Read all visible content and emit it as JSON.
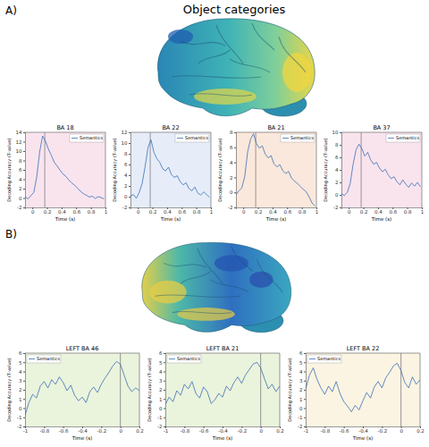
{
  "figure": {
    "title": "Object categories",
    "panels": [
      "A)",
      "B)"
    ]
  },
  "chart_data": [
    {
      "type": "line",
      "title": "BA 18",
      "xlabel": "Time (s)",
      "ylabel": "Decoding Accuracy (T-value)",
      "x": [
        -0.1,
        -0.06,
        -0.02,
        0.02,
        0.06,
        0.1,
        0.14,
        0.18,
        0.22,
        0.26,
        0.3,
        0.34,
        0.38,
        0.42,
        0.46,
        0.5,
        0.54,
        0.58,
        0.62,
        0.66,
        0.7,
        0.74,
        0.78,
        0.82,
        0.86,
        0.9,
        0.94,
        0.98
      ],
      "series": [
        {
          "name": "Semantics",
          "color": "#3b6fb6",
          "values": [
            0.3,
            -0.2,
            0.5,
            1.2,
            4.5,
            9.8,
            13.2,
            12.1,
            10.4,
            9.1,
            7.6,
            6.8,
            5.9,
            5.1,
            4.6,
            3.8,
            3.2,
            2.7,
            2.1,
            1.4,
            0.9,
            0.6,
            0.2,
            0.4,
            -0.1,
            0.3,
            0.1,
            -0.2
          ]
        }
      ],
      "xlim": [
        -0.1,
        1
      ],
      "xticks": [
        0,
        0.2,
        0.4,
        0.6,
        0.8,
        1
      ],
      "ylim": [
        -2,
        14
      ],
      "yticks": [
        -2,
        0,
        2,
        4,
        6,
        8,
        10,
        12,
        14
      ],
      "vline": 0.17,
      "legend": "upper right",
      "grid": false
    },
    {
      "type": "line",
      "title": "BA 22",
      "xlabel": "Time (s)",
      "ylabel": "Decoding Accuracy (T-value)",
      "x": [
        -0.1,
        -0.06,
        -0.02,
        0.02,
        0.06,
        0.1,
        0.14,
        0.18,
        0.22,
        0.26,
        0.3,
        0.34,
        0.38,
        0.42,
        0.46,
        0.5,
        0.54,
        0.58,
        0.62,
        0.66,
        0.7,
        0.74,
        0.78,
        0.82,
        0.86,
        0.9,
        0.94,
        0.98
      ],
      "series": [
        {
          "name": "Semantics",
          "color": "#3b6fb6",
          "values": [
            0.1,
            0.4,
            -0.3,
            0.8,
            2.5,
            5.6,
            9.2,
            10.6,
            8.3,
            7.1,
            6.4,
            5.2,
            4.8,
            5.5,
            4.1,
            3.6,
            3.9,
            2.8,
            2.2,
            2.6,
            1.5,
            1.1,
            1.8,
            0.7,
            0.3,
            0.9,
            0.4,
            -0.1
          ]
        }
      ],
      "xlim": [
        -0.1,
        1
      ],
      "xticks": [
        0,
        0.2,
        0.4,
        0.6,
        0.8,
        1
      ],
      "ylim": [
        -2,
        12
      ],
      "yticks": [
        -2,
        0,
        2,
        4,
        6,
        8,
        10,
        12
      ],
      "vline": 0.17,
      "legend": "upper right",
      "grid": false
    },
    {
      "type": "line",
      "title": "BA 21",
      "xlabel": "Time (s)",
      "ylabel": "Decoding Accuracy (T-value)",
      "x": [
        -0.1,
        -0.06,
        -0.02,
        0.02,
        0.06,
        0.1,
        0.14,
        0.18,
        0.22,
        0.26,
        0.3,
        0.34,
        0.38,
        0.42,
        0.46,
        0.5,
        0.54,
        0.58,
        0.62,
        0.66,
        0.7,
        0.74,
        0.78,
        0.82,
        0.86,
        0.9,
        0.94,
        0.98
      ],
      "series": [
        {
          "name": "Semantics",
          "color": "#3b6fb6",
          "values": [
            -0.3,
            0.2,
            0.6,
            2.1,
            5.4,
            7.1,
            7.8,
            6.5,
            5.9,
            6.2,
            5.1,
            4.6,
            4.9,
            3.8,
            3.4,
            3.7,
            2.9,
            2.5,
            2.8,
            1.9,
            1.5,
            1.2,
            0.8,
            0.4,
            0.1,
            -0.6,
            -1.4,
            -1.8
          ]
        }
      ],
      "xlim": [
        -0.1,
        1
      ],
      "xticks": [
        0,
        0.2,
        0.4,
        0.6,
        0.8,
        1
      ],
      "ylim": [
        -2,
        8
      ],
      "yticks": [
        -2,
        0,
        2,
        4,
        6,
        8
      ],
      "vline": 0.17,
      "legend": "upper right",
      "grid": false
    },
    {
      "type": "line",
      "title": "BA 37",
      "xlabel": "Time (s)",
      "ylabel": "Decoding Accuracy (T-value)",
      "x": [
        -0.1,
        -0.06,
        -0.02,
        0.02,
        0.06,
        0.1,
        0.14,
        0.18,
        0.22,
        0.26,
        0.3,
        0.34,
        0.38,
        0.42,
        0.46,
        0.5,
        0.54,
        0.58,
        0.62,
        0.66,
        0.7,
        0.74,
        0.78,
        0.82,
        0.86,
        0.9,
        0.94,
        0.98
      ],
      "series": [
        {
          "name": "Semantics",
          "color": "#3b6fb6",
          "values": [
            0.2,
            -0.1,
            0.4,
            1.8,
            4.9,
            7.2,
            8.1,
            7.4,
            6.2,
            6.8,
            5.6,
            4.9,
            5.2,
            4.3,
            3.7,
            4.1,
            3.2,
            2.6,
            2.9,
            2.1,
            1.6,
            2.4,
            1.7,
            1.2,
            1.9,
            1.4,
            2.0,
            1.3
          ]
        }
      ],
      "xlim": [
        -0.1,
        1
      ],
      "xticks": [
        0,
        0.2,
        0.4,
        0.6,
        0.8,
        1
      ],
      "ylim": [
        -2,
        10
      ],
      "yticks": [
        -2,
        0,
        2,
        4,
        6,
        8,
        10
      ],
      "vline": 0.17,
      "legend": "upper right",
      "grid": false
    },
    {
      "type": "line",
      "title": "LEFT  BA 46",
      "xlabel": "Time (s)",
      "ylabel": "Decoding Accuracy (T-value)",
      "x": [
        -1,
        -0.96,
        -0.92,
        -0.88,
        -0.84,
        -0.8,
        -0.76,
        -0.72,
        -0.68,
        -0.64,
        -0.6,
        -0.56,
        -0.52,
        -0.48,
        -0.44,
        -0.4,
        -0.36,
        -0.32,
        -0.28,
        -0.24,
        -0.2,
        -0.16,
        -0.12,
        -0.08,
        -0.04,
        0,
        0.04,
        0.08,
        0.12,
        0.16,
        0.2
      ],
      "series": [
        {
          "name": "Semantics",
          "color": "#3b6fb6",
          "values": [
            -0.8,
            0.6,
            1.5,
            1.1,
            2.4,
            2.9,
            2.2,
            3.1,
            2.6,
            3.4,
            2.8,
            1.9,
            2.5,
            1.4,
            0.8,
            1.2,
            0.6,
            1.8,
            2.3,
            1.7,
            2.6,
            3.3,
            3.9,
            4.6,
            5.1,
            4.8,
            3.6,
            2.4,
            1.8,
            2.2,
            1.9
          ]
        }
      ],
      "xlim": [
        -1,
        0.2
      ],
      "xticks": [
        -1,
        -0.8,
        -0.6,
        -0.4,
        -0.2,
        0,
        0.2
      ],
      "ylim": [
        -2,
        6
      ],
      "yticks": [
        -2,
        -1,
        0,
        1,
        2,
        3,
        4,
        5,
        6
      ],
      "vline": 0,
      "legend": "upper left",
      "grid": false
    },
    {
      "type": "line",
      "title": "LEFT  BA 21",
      "xlabel": "Time (s)",
      "ylabel": "Decoding Accuracy (T-value)",
      "x": [
        -1,
        -0.96,
        -0.92,
        -0.88,
        -0.84,
        -0.8,
        -0.76,
        -0.72,
        -0.68,
        -0.64,
        -0.6,
        -0.56,
        -0.52,
        -0.48,
        -0.44,
        -0.4,
        -0.36,
        -0.32,
        -0.28,
        -0.24,
        -0.2,
        -0.16,
        -0.12,
        -0.08,
        -0.04,
        0,
        0.04,
        0.08,
        0.12,
        0.16,
        0.2
      ],
      "series": [
        {
          "name": "Semantics",
          "color": "#3b6fb6",
          "values": [
            0.4,
            1.2,
            0.7,
            1.9,
            1.4,
            2.6,
            2.1,
            2.9,
            1.6,
            1.1,
            2.3,
            1.8,
            0.5,
            0.9,
            1.6,
            1.2,
            2.4,
            1.9,
            2.8,
            3.4,
            2.7,
            3.6,
            4.2,
            4.8,
            5.0,
            4.4,
            3.2,
            2.1,
            2.6,
            1.8,
            2.4
          ]
        }
      ],
      "xlim": [
        -1,
        0.2
      ],
      "xticks": [
        -1,
        -0.8,
        -0.6,
        -0.4,
        -0.2,
        0,
        0.2
      ],
      "ylim": [
        -2,
        6
      ],
      "yticks": [
        -2,
        -1,
        0,
        1,
        2,
        3,
        4,
        5,
        6
      ],
      "vline": 0,
      "legend": "upper left",
      "grid": false
    },
    {
      "type": "line",
      "title": "LEFT  BA 22",
      "xlabel": "Time (s)",
      "ylabel": "Decoding Accuracy (T-value)",
      "x": [
        -1,
        -0.96,
        -0.92,
        -0.88,
        -0.84,
        -0.8,
        -0.76,
        -0.72,
        -0.68,
        -0.64,
        -0.6,
        -0.56,
        -0.52,
        -0.48,
        -0.44,
        -0.4,
        -0.36,
        -0.32,
        -0.28,
        -0.24,
        -0.2,
        -0.16,
        -0.12,
        -0.08,
        -0.04,
        0,
        0.04,
        0.08,
        0.12,
        0.16,
        0.2
      ],
      "series": [
        {
          "name": "Semantics",
          "color": "#3b6fb6",
          "values": [
            2.1,
            3.6,
            4.4,
            3.1,
            2.2,
            1.5,
            2.4,
            1.8,
            2.9,
            1.6,
            0.7,
            0.2,
            -0.4,
            0.3,
            -0.2,
            0.8,
            1.7,
            1.1,
            2.3,
            2.9,
            2.2,
            3.3,
            3.9,
            4.6,
            4.9,
            4.1,
            2.8,
            2.2,
            3.4,
            2.6,
            3.1
          ]
        }
      ],
      "xlim": [
        -1,
        0.2
      ],
      "xticks": [
        -1,
        -0.8,
        -0.6,
        -0.4,
        -0.2,
        0,
        0.2
      ],
      "ylim": [
        -2,
        6
      ],
      "yticks": [
        -2,
        -1,
        0,
        1,
        2,
        3,
        4,
        5,
        6
      ],
      "vline": 0,
      "legend": "upper left",
      "grid": false
    }
  ]
}
